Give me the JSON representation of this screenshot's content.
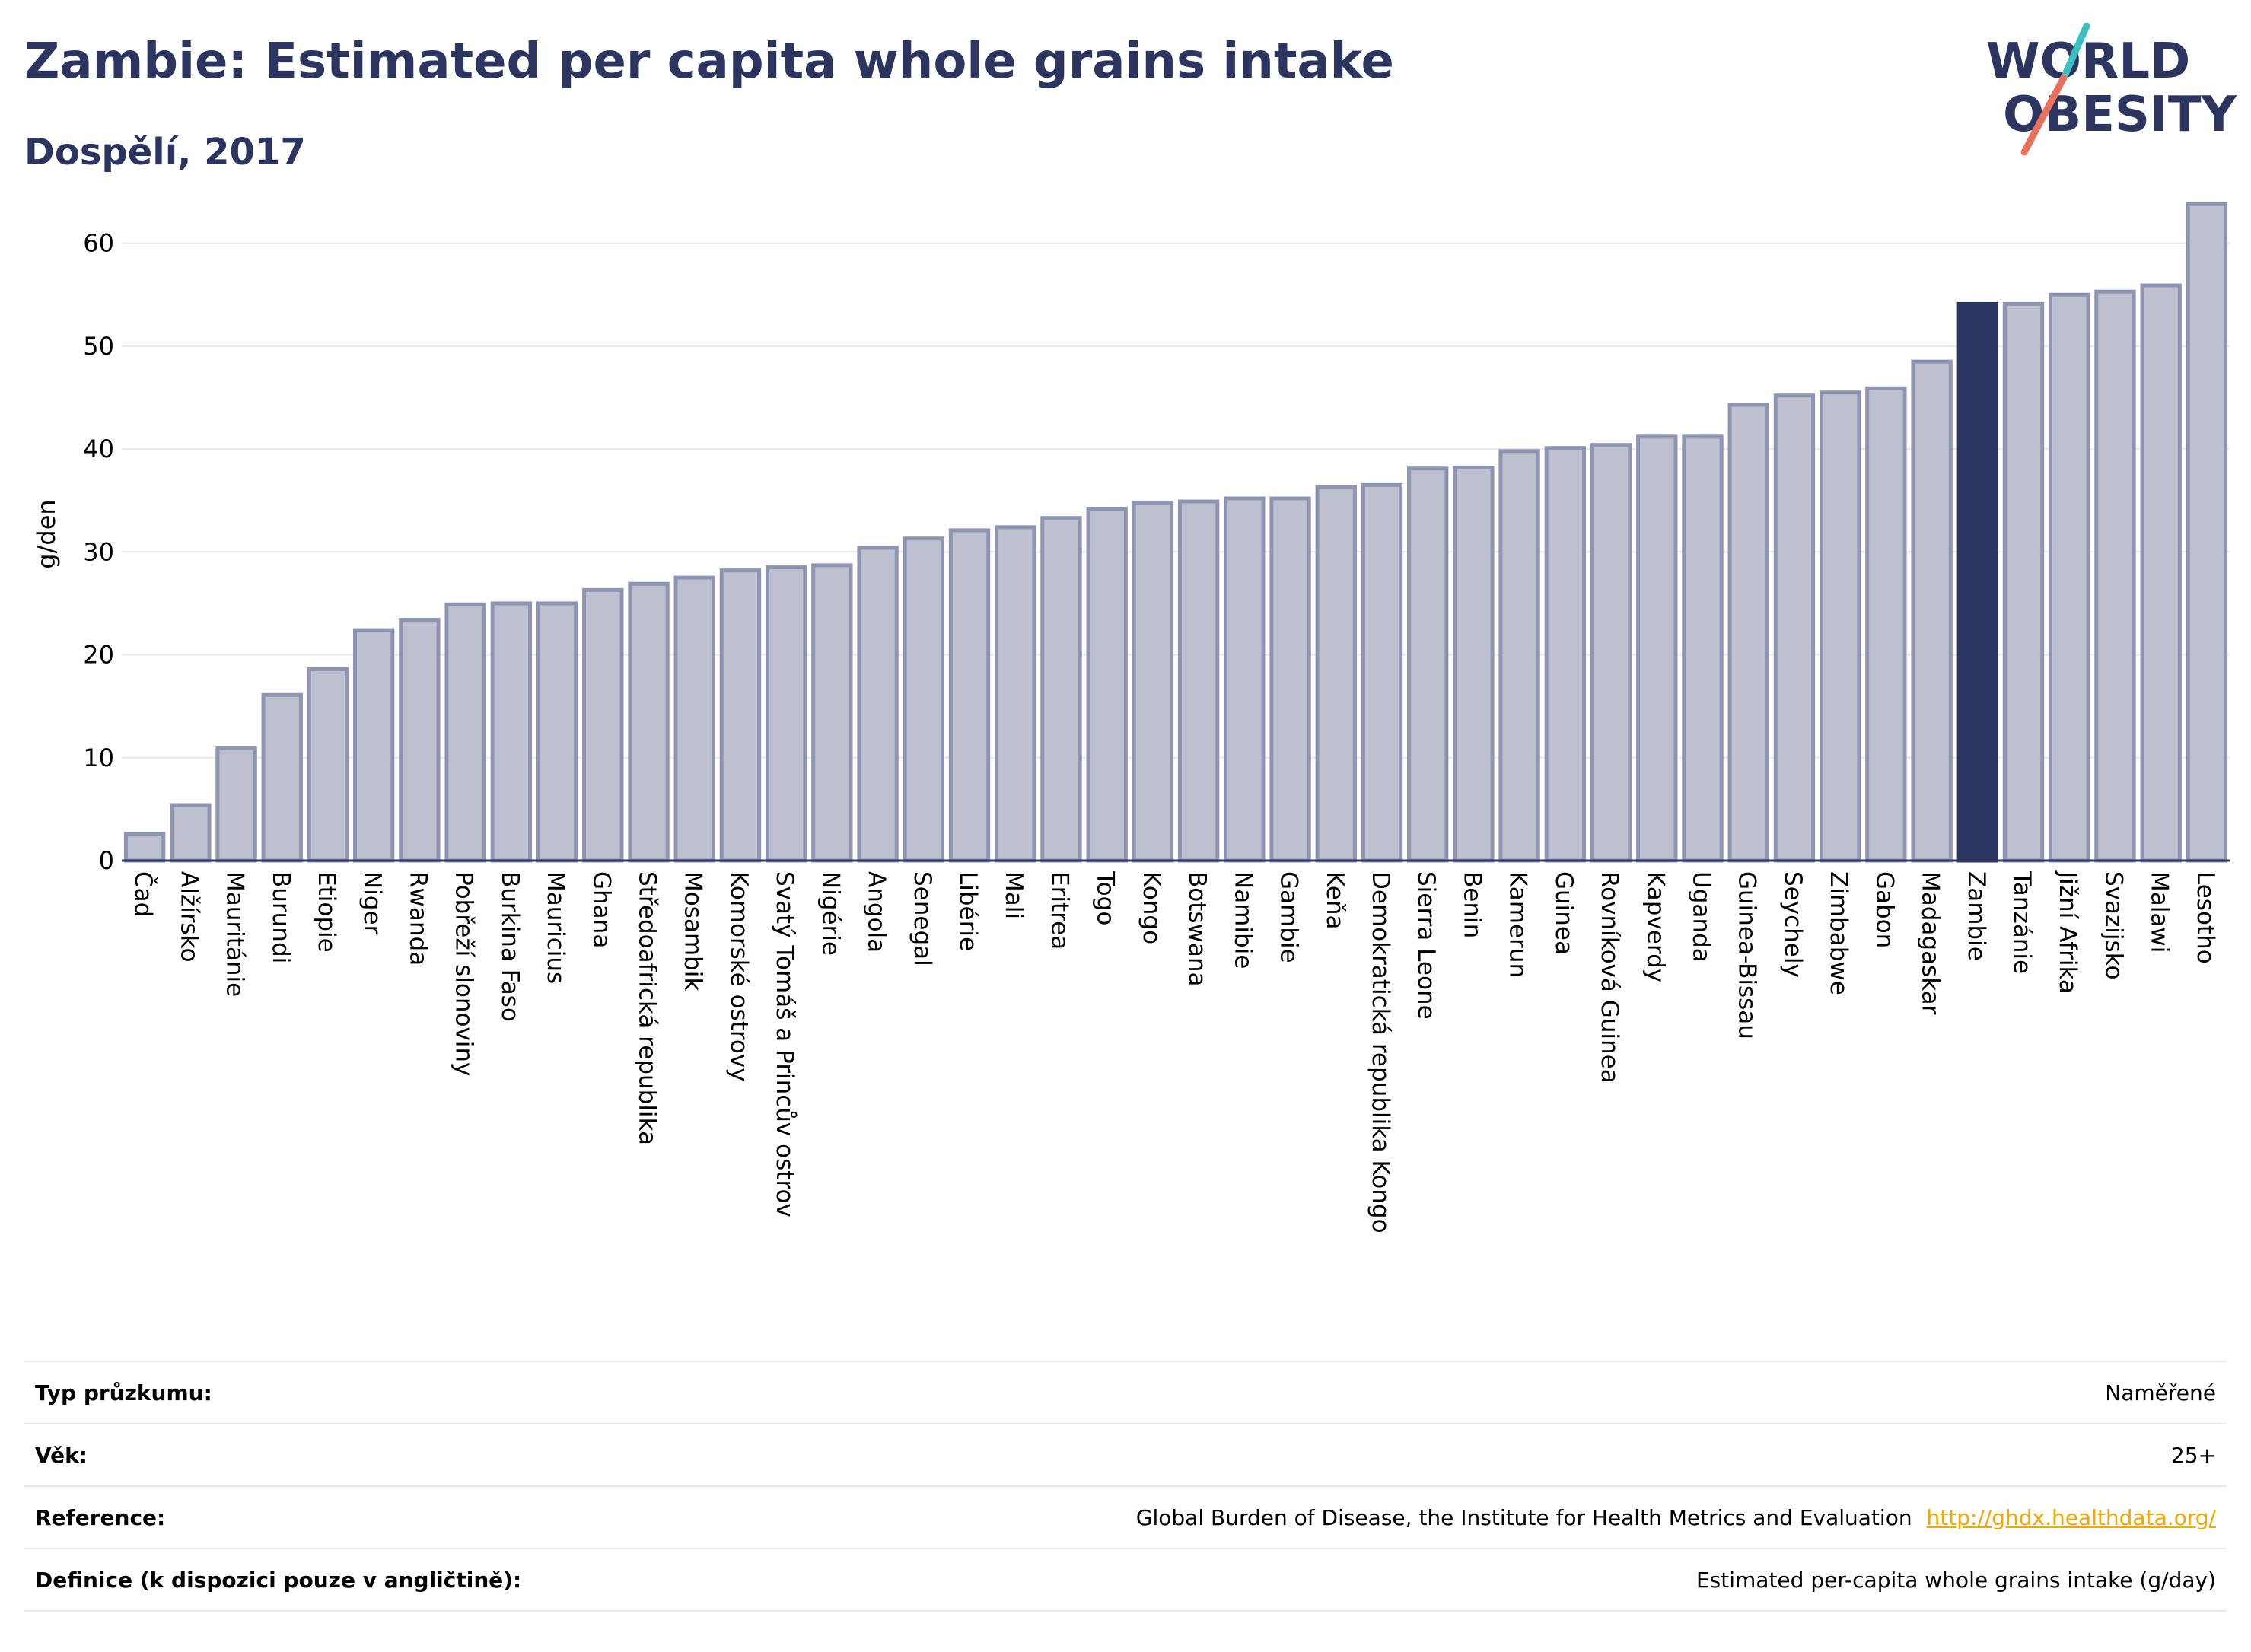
{
  "header": {
    "title": "Zambie: Estimated per capita whole grains intake",
    "subtitle": "Dospělí, 2017"
  },
  "logo": {
    "line1": "WORLD",
    "line2": "OBESITY",
    "colors": {
      "text": "#2b3560",
      "teal": "#3cbfc1",
      "coral": "#e8705c"
    }
  },
  "colors": {
    "bar": "#bcc0cf",
    "bar_border": "#8e95b2",
    "highlight": "#2b3560",
    "axis_text": "#000000",
    "grid": "#e6e8ef",
    "link": "#f2a800"
  },
  "chart_data": {
    "type": "bar",
    "title": "Zambie: Estimated per capita whole grains intake",
    "subtitle": "Dospělí, 2017",
    "ylabel": "g/den",
    "xlabel": "",
    "ylim": [
      0,
      65
    ],
    "yticks": [
      0,
      10,
      20,
      30,
      40,
      50,
      60
    ],
    "grid": true,
    "highlight": "Zambie",
    "categories": [
      "Čad",
      "Alžírsko",
      "Mauritánie",
      "Burundi",
      "Etiopie",
      "Niger",
      "Rwanda",
      "Pobřeží slonoviny",
      "Burkina Faso",
      "Mauricius",
      "Ghana",
      "Středoafrická republika",
      "Mosambik",
      "Komorské ostrovy",
      "Svatý Tomáš a Princův ostrov",
      "Nigérie",
      "Angola",
      "Senegal",
      "Libérie",
      "Mali",
      "Eritrea",
      "Togo",
      "Kongo",
      "Botswana",
      "Namibie",
      "Gambie",
      "Keňa",
      "Demokratická republika Kongo",
      "Sierra Leone",
      "Benin",
      "Kamerun",
      "Guinea",
      "Rovníková Guinea",
      "Kapverdy",
      "Uganda",
      "Guinea-Bissau",
      "Seychely",
      "Zimbabwe",
      "Gabon",
      "Madagaskar",
      "Zambie",
      "Tanzánie",
      "Jižní Afrika",
      "Svazijsko",
      "Malawi",
      "Lesotho"
    ],
    "values": [
      2.6,
      5.4,
      10.9,
      16.1,
      18.6,
      22.4,
      23.4,
      24.9,
      25.0,
      25.0,
      26.3,
      26.9,
      27.5,
      28.2,
      28.5,
      28.7,
      30.4,
      31.3,
      32.1,
      32.4,
      33.3,
      34.2,
      34.8,
      34.9,
      35.2,
      35.2,
      36.3,
      36.5,
      38.1,
      38.2,
      39.8,
      40.1,
      40.4,
      41.2,
      41.2,
      44.3,
      45.2,
      45.5,
      45.9,
      48.5,
      54.1,
      54.1,
      55.0,
      55.3,
      55.9,
      63.8
    ]
  },
  "info_table": [
    {
      "label": "Typ průzkumu:",
      "value": "Naměřené"
    },
    {
      "label": "Věk:",
      "value": "25+"
    },
    {
      "label": "Reference:",
      "value": "Global Burden of Disease, the Institute for Health Metrics and Evaluation",
      "link": "http://ghdx.healthdata.org/"
    },
    {
      "label": "Definice (k dispozici pouze v angličtině):",
      "value": "Estimated per-capita whole grains intake (g/day)"
    }
  ]
}
